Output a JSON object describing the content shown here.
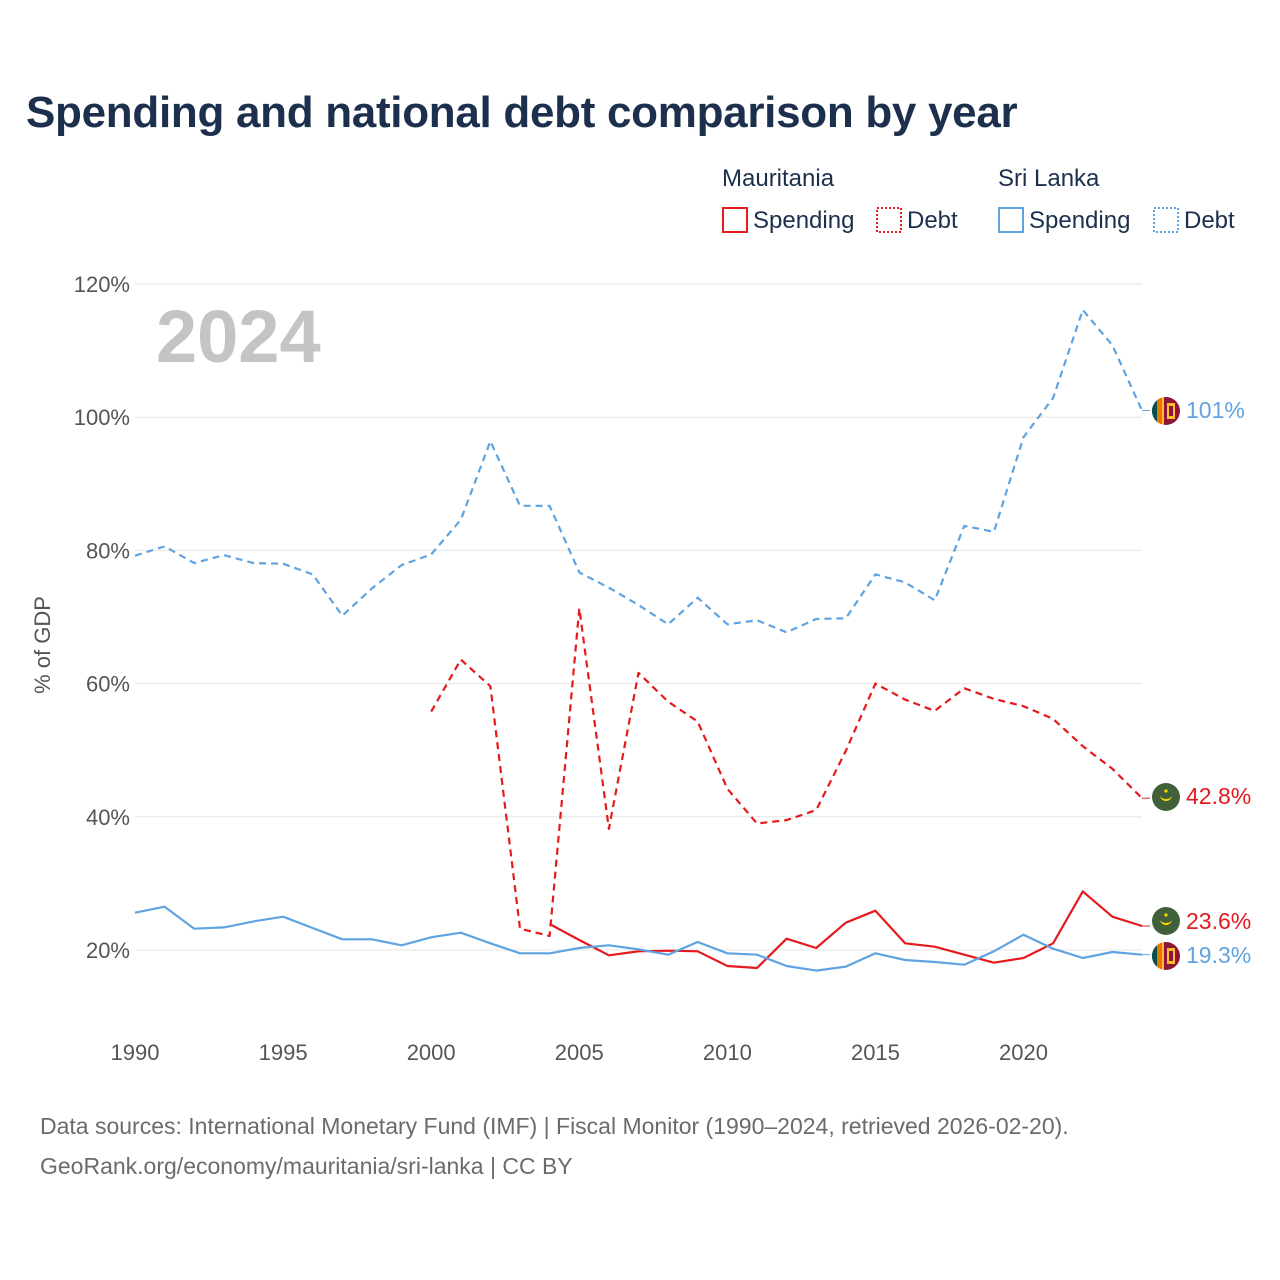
{
  "title": "Spending and national debt comparison by year",
  "colors": {
    "mauritania": "#e41a1c",
    "sri_lanka": "#5fa3e0",
    "grid": "#e6e6e6",
    "text": "#1c2f4d",
    "axis": "#555555"
  },
  "legend": {
    "groups": [
      {
        "country": "Mauritania",
        "color": "#e41a1c",
        "items": [
          "Spending",
          "Debt"
        ]
      },
      {
        "country": "Sri Lanka",
        "color": "#5fa3e0",
        "items": [
          "Spending",
          "Debt"
        ]
      }
    ]
  },
  "year_watermark": "2024",
  "source": {
    "line1": "Data sources: International Monetary Fund (IMF) | Fiscal Monitor (1990–2024, retrieved 2026-02-20).",
    "line2": "GeoRank.org/economy/mauritania/sri-lanka | CC BY"
  },
  "chart_data": {
    "type": "line",
    "title": "Spending and national debt comparison by year",
    "xlabel": "",
    "ylabel": "% of GDP",
    "xlim": [
      1990,
      2024
    ],
    "ylim": [
      10,
      120
    ],
    "xticks": [
      1990,
      1995,
      2000,
      2005,
      2010,
      2015,
      2020
    ],
    "xtick_labels": [
      "1990",
      "1995",
      "2000",
      "2005",
      "2010",
      "2015",
      "2020"
    ],
    "yticks": [
      20,
      40,
      60,
      80,
      100,
      120
    ],
    "ytick_labels": [
      "20%",
      "40%",
      "60%",
      "80%",
      "100%",
      "120%"
    ],
    "series": [
      {
        "name": "Sri Lanka Debt",
        "country": "Sri Lanka",
        "metric": "Debt",
        "style": "dashed",
        "color": "#5fa3e0",
        "x": [
          1990,
          1991,
          1992,
          1993,
          1994,
          1995,
          1996,
          1997,
          1998,
          1999,
          2000,
          2001,
          2002,
          2003,
          2004,
          2005,
          2006,
          2007,
          2008,
          2009,
          2010,
          2011,
          2012,
          2013,
          2014,
          2015,
          2016,
          2017,
          2018,
          2019,
          2020,
          2021,
          2022,
          2023,
          2024
        ],
        "values": [
          79.2,
          80.6,
          78.1,
          79.3,
          78.1,
          78.0,
          76.4,
          70.2,
          74.3,
          77.8,
          79.4,
          84.6,
          96.4,
          86.7,
          86.7,
          76.7,
          74.4,
          71.8,
          68.9,
          72.9,
          68.9,
          69.5,
          67.7,
          69.7,
          69.8,
          76.4,
          75.2,
          72.5,
          83.7,
          82.8,
          97.0,
          102.9,
          116.1,
          110.8,
          101.0
        ],
        "end_label": "101%"
      },
      {
        "name": "Mauritania Debt",
        "country": "Mauritania",
        "metric": "Debt",
        "style": "dashed",
        "color": "#e41a1c",
        "x": [
          2000,
          2001,
          2002,
          2003,
          2004,
          2005,
          2006,
          2007,
          2008,
          2009,
          2010,
          2011,
          2012,
          2013,
          2014,
          2015,
          2016,
          2017,
          2018,
          2019,
          2020,
          2021,
          2022,
          2023,
          2024
        ],
        "values": [
          55.8,
          63.6,
          59.6,
          23.2,
          22.1,
          71.3,
          38.2,
          61.6,
          57.3,
          54.3,
          44.2,
          39.0,
          39.5,
          41.0,
          49.9,
          60.0,
          57.6,
          55.9,
          59.3,
          57.7,
          56.6,
          54.7,
          50.6,
          47.2,
          42.8
        ],
        "end_label": "42.8%"
      },
      {
        "name": "Mauritania Spending",
        "country": "Mauritania",
        "metric": "Spending",
        "style": "solid",
        "color": "#e41a1c",
        "x": [
          2004,
          2005,
          2006,
          2007,
          2008,
          2009,
          2010,
          2011,
          2012,
          2013,
          2014,
          2015,
          2016,
          2017,
          2018,
          2019,
          2020,
          2021,
          2022,
          2023,
          2024
        ],
        "values": [
          23.9,
          21.5,
          19.2,
          19.8,
          19.9,
          19.8,
          17.6,
          17.3,
          21.7,
          20.3,
          24.1,
          25.9,
          21.0,
          20.5,
          19.3,
          18.1,
          18.8,
          21.0,
          28.8,
          25.0,
          23.6
        ],
        "end_label": "23.6%"
      },
      {
        "name": "Sri Lanka Spending",
        "country": "Sri Lanka",
        "metric": "Spending",
        "style": "solid",
        "color": "#5fa3e0",
        "x": [
          1990,
          1991,
          1992,
          1993,
          1994,
          1995,
          1996,
          1997,
          1998,
          1999,
          2000,
          2001,
          2002,
          2003,
          2004,
          2005,
          2006,
          2007,
          2008,
          2009,
          2010,
          2011,
          2012,
          2013,
          2014,
          2015,
          2016,
          2017,
          2018,
          2019,
          2020,
          2021,
          2022,
          2023,
          2024
        ],
        "values": [
          25.6,
          26.5,
          23.2,
          23.4,
          24.3,
          25.0,
          23.3,
          21.6,
          21.6,
          20.7,
          21.9,
          22.6,
          21.0,
          19.5,
          19.5,
          20.3,
          20.7,
          20.1,
          19.3,
          21.2,
          19.5,
          19.3,
          17.6,
          16.9,
          17.5,
          19.5,
          18.5,
          18.2,
          17.8,
          19.8,
          22.3,
          20.2,
          18.8,
          19.7,
          19.3
        ],
        "end_label": "19.3%"
      }
    ]
  }
}
